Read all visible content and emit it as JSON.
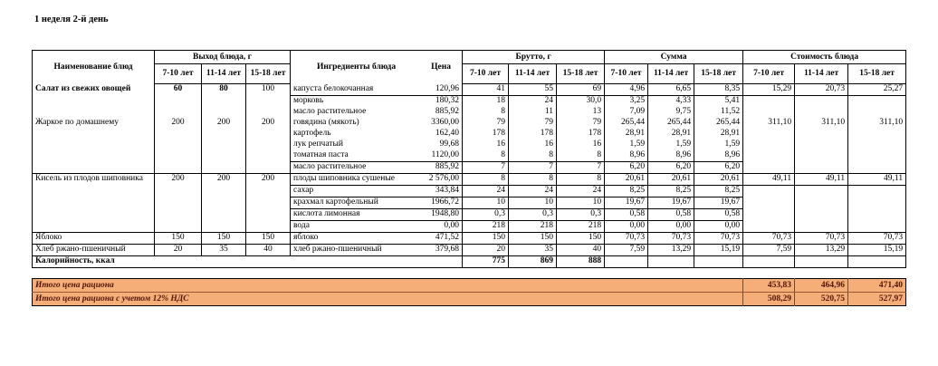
{
  "title": "1 неделя 2-й день",
  "table": {
    "headers": {
      "dish": "Наименование блюд",
      "output": "Выход блюда, г",
      "ingredients": "Ингредиенты блюда",
      "price": "Цена",
      "gross": "Брутто, г",
      "sum": "Сумма",
      "cost": "Стоимость блюда",
      "age_groups": [
        "7-10 лет",
        "11-14 лет",
        "15-18 лет"
      ]
    },
    "dishes": [
      {
        "name": "Салат из свежих овощей",
        "output": [
          "60",
          "80",
          "100"
        ],
        "cost": [
          "15,29",
          "20,73",
          "25,27"
        ],
        "ingredients": [
          {
            "name": "капуста белокочанная",
            "price": "120,96",
            "gross": [
              "41",
              "55",
              "69"
            ],
            "sum": [
              "4,96",
              "6,65",
              "8,35"
            ]
          },
          {
            "name": "морковь",
            "price": "180,32",
            "gross": [
              "18",
              "24",
              "30,0"
            ],
            "sum": [
              "3,25",
              "4,33",
              "5,41"
            ]
          },
          {
            "name": "масло растительное",
            "price": "885,92",
            "gross": [
              "8",
              "11",
              "13"
            ],
            "sum": [
              "7,09",
              "9,75",
              "11,52"
            ]
          }
        ]
      },
      {
        "name": "Жаркое по домашнему",
        "output": [
          "200",
          "200",
          "200"
        ],
        "cost": [
          "311,10",
          "311,10",
          "311,10"
        ],
        "ingredients": [
          {
            "name": "говядина (мякоть)",
            "price": "3360,00",
            "gross": [
              "79",
              "79",
              "79"
            ],
            "sum": [
              "265,44",
              "265,44",
              "265,44"
            ]
          },
          {
            "name": "картофель",
            "price": "162,40",
            "gross": [
              "178",
              "178",
              "178"
            ],
            "sum": [
              "28,91",
              "28,91",
              "28,91"
            ]
          },
          {
            "name": "лук репчатый",
            "price": "99,68",
            "gross": [
              "16",
              "16",
              "16"
            ],
            "sum": [
              "1,59",
              "1,59",
              "1,59"
            ]
          },
          {
            "name": "томатная паста",
            "price": "1120,00",
            "gross": [
              "8",
              "8",
              "8"
            ],
            "sum": [
              "8,96",
              "8,96",
              "8,96"
            ]
          },
          {
            "name": "масло растительное",
            "price": "885,92",
            "gross": [
              "7",
              "7",
              "7"
            ],
            "sum": [
              "6,20",
              "6,20",
              "6,20"
            ]
          }
        ]
      },
      {
        "name": "Кисель из плодов шиповника",
        "output": [
          "200",
          "200",
          "200"
        ],
        "cost": [
          "49,11",
          "49,11",
          "49,11"
        ],
        "ingredients": [
          {
            "name": "плоды шиповника сушеные",
            "price": "2 576,00",
            "gross": [
              "8",
              "8",
              "8"
            ],
            "sum": [
              "20,61",
              "20,61",
              "20,61"
            ]
          },
          {
            "name": "сахар",
            "price": "343,84",
            "gross": [
              "24",
              "24",
              "24"
            ],
            "sum": [
              "8,25",
              "8,25",
              "8,25"
            ]
          },
          {
            "name": "крахмал картофельный",
            "price": "1966,72",
            "gross": [
              "10",
              "10",
              "10"
            ],
            "sum": [
              "19,67",
              "19,67",
              "19,67"
            ]
          },
          {
            "name": "кислота лимонная",
            "price": "1948,80",
            "gross": [
              "0,3",
              "0,3",
              "0,3"
            ],
            "sum": [
              "0,58",
              "0,58",
              "0,58"
            ]
          },
          {
            "name": "вода",
            "price": "0,00",
            "gross": [
              "218",
              "218",
              "218"
            ],
            "sum": [
              "0,00",
              "0,00",
              "0,00"
            ]
          }
        ]
      },
      {
        "name": "Яблоко",
        "output": [
          "150",
          "150",
          "150"
        ],
        "cost": [
          "70,73",
          "70,73",
          "70,73"
        ],
        "ingredients": [
          {
            "name": "яблоко",
            "price": "471,52",
            "gross": [
              "150",
              "150",
              "150"
            ],
            "sum": [
              "70,73",
              "70,73",
              "70,73"
            ]
          }
        ]
      },
      {
        "name": "Хлеб ржано-пшеничный",
        "output": [
          "20",
          "35",
          "40"
        ],
        "cost": [
          "7,59",
          "13,29",
          "15,19"
        ],
        "ingredients": [
          {
            "name": "хлеб ржано-пшеничный",
            "price": "379,68",
            "gross": [
              "20",
              "35",
              "40"
            ],
            "sum": [
              "7,59",
              "13,29",
              "15,19"
            ]
          }
        ]
      }
    ],
    "calories": {
      "label": "Калорийность, ккал",
      "values": [
        "775",
        "869",
        "888"
      ]
    }
  },
  "totals": [
    {
      "label": "Итого цена рациона",
      "values": [
        "453,83",
        "464,96",
        "471,40"
      ]
    },
    {
      "label": "Итого цена рациона с учетом 12% НДС",
      "values": [
        "508,29",
        "520,75",
        "527,97"
      ]
    }
  ],
  "colors": {
    "totals_bg": "#F5AE78",
    "totals_text": "#521505",
    "border": "#000000"
  }
}
